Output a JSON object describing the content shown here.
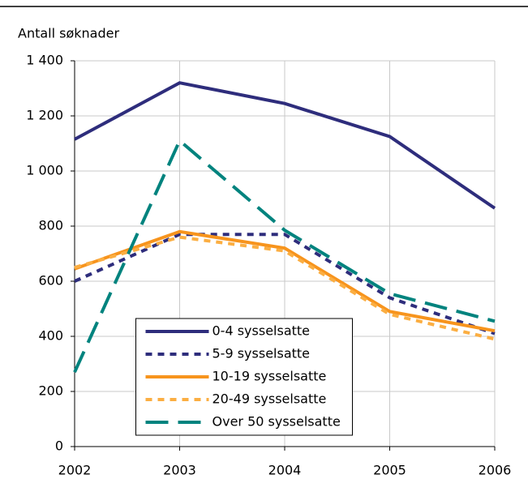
{
  "chart_data": {
    "type": "line",
    "ylabel": "Antall søknader",
    "x": [
      2002,
      2003,
      2004,
      2005,
      2006
    ],
    "xlim": [
      2002,
      2006
    ],
    "xticks": [
      2002,
      2003,
      2004,
      2005,
      2006
    ],
    "ylim": [
      0,
      1400
    ],
    "yticks": [
      0,
      200,
      400,
      600,
      800,
      {
        "value": 1000,
        "label": "1 000"
      },
      {
        "value": 1200,
        "label": "1 200"
      },
      {
        "value": 1400,
        "label": "1 400"
      }
    ],
    "grid": true,
    "legend": "lower center",
    "series": [
      {
        "name": "0-4 sysselsatte",
        "color": "#2e2d7c",
        "style": "solid",
        "values": [
          1115,
          1320,
          1245,
          1125,
          865
        ]
      },
      {
        "name": "5-9 sysselsatte",
        "color": "#2e2d7c",
        "style": "dotted",
        "values": [
          600,
          770,
          770,
          540,
          410
        ]
      },
      {
        "name": "10-19 sysselsatte",
        "color": "#f7941d",
        "style": "solid",
        "values": [
          645,
          780,
          720,
          490,
          420
        ]
      },
      {
        "name": "20-49 sysselsatte",
        "color": "#fbae42",
        "style": "dotted",
        "values": [
          650,
          760,
          710,
          480,
          390
        ]
      },
      {
        "name": "Over 50 sysselsatte",
        "color": "#00837e",
        "style": "dashed",
        "values": [
          270,
          1110,
          785,
          555,
          455
        ]
      }
    ]
  }
}
